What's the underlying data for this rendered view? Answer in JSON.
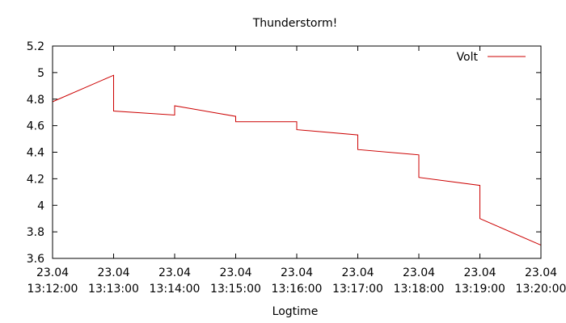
{
  "chart_data": {
    "type": "line",
    "title": "Thunderstorm!",
    "xlabel": "Logtime",
    "ylabel": "",
    "x_ticks": [
      {
        "date": "23.04",
        "time": "13:12:00"
      },
      {
        "date": "23.04",
        "time": "13:13:00"
      },
      {
        "date": "23.04",
        "time": "13:14:00"
      },
      {
        "date": "23.04",
        "time": "13:15:00"
      },
      {
        "date": "23.04",
        "time": "13:16:00"
      },
      {
        "date": "23.04",
        "time": "13:17:00"
      },
      {
        "date": "23.04",
        "time": "13:18:00"
      },
      {
        "date": "23.04",
        "time": "13:19:00"
      },
      {
        "date": "23.04",
        "time": "13:20:00"
      }
    ],
    "xlim_minutes": [
      0,
      8
    ],
    "ylim": [
      3.6,
      5.2
    ],
    "y_ticks": [
      "3.6",
      "3.8",
      "4",
      "4.2",
      "4.4",
      "4.6",
      "4.8",
      "5",
      "5.2"
    ],
    "legend": {
      "position": "top-right",
      "entries": [
        "Volt"
      ]
    },
    "series": [
      {
        "name": "Volt",
        "color": "#cc0000",
        "x_minutes": [
          0,
          1,
          1,
          2,
          2,
          3,
          3,
          4,
          4,
          5,
          5,
          6,
          6,
          7,
          7,
          8
        ],
        "y": [
          4.78,
          4.98,
          4.71,
          4.68,
          4.75,
          4.67,
          4.63,
          4.63,
          4.57,
          4.53,
          4.42,
          4.38,
          4.21,
          4.15,
          3.9,
          3.7
        ]
      }
    ]
  }
}
